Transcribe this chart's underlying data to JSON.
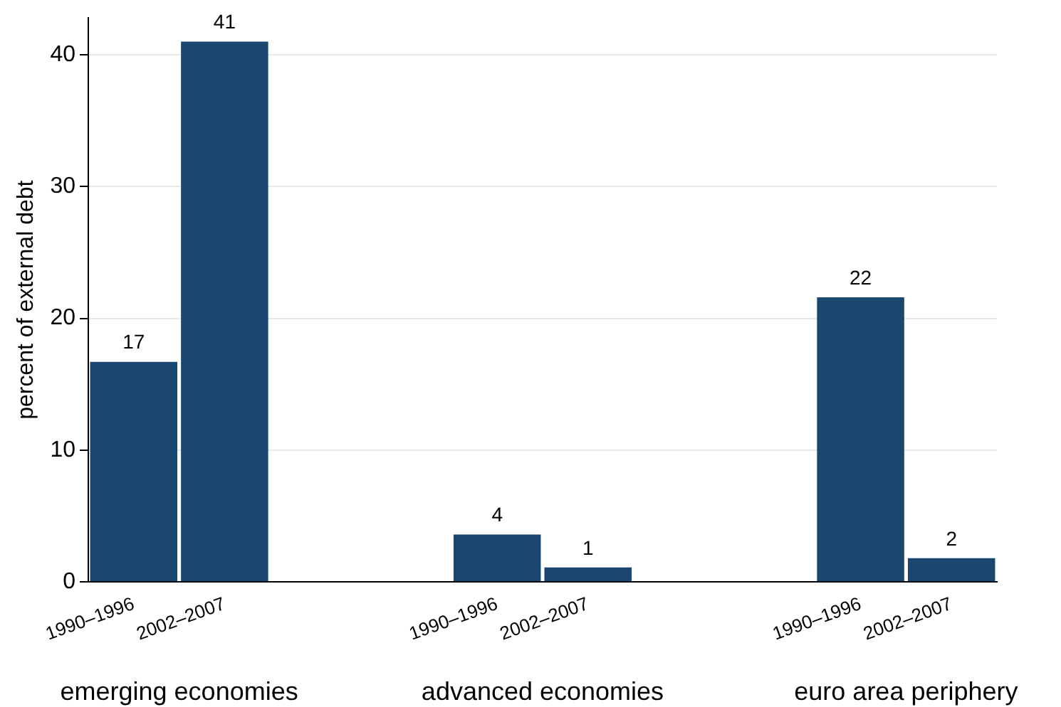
{
  "chart_data": {
    "type": "bar",
    "ylabel": "percent of external debt",
    "categories": [
      "1990–1996",
      "2002–2007",
      null,
      null,
      "1990–1996",
      "2002–2007",
      null,
      null,
      "1990–1996",
      "2002–2007"
    ],
    "values": [
      16.7,
      41,
      null,
      null,
      3.6,
      1.1,
      null,
      null,
      21.6,
      1.8
    ],
    "value_labels": [
      "17",
      "41",
      null,
      null,
      "4",
      "1",
      null,
      null,
      "22",
      "2"
    ],
    "color": "#1a476f",
    "ylim": [
      0,
      42.8
    ],
    "yticks": [
      0,
      10,
      20,
      30,
      40
    ],
    "grid": "y",
    "legend": false,
    "annotations": [
      "emerging economies",
      "advanced economies",
      "euro area periphery"
    ]
  }
}
